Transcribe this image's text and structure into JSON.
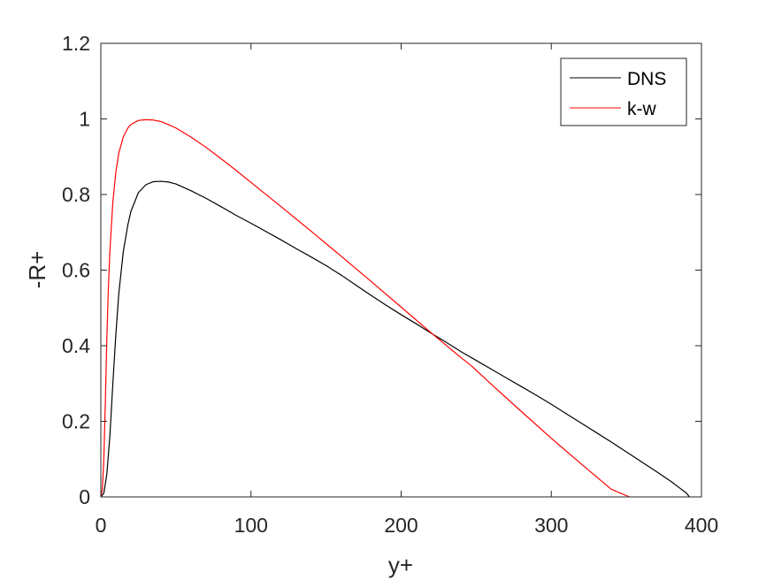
{
  "chart_data": {
    "type": "line",
    "title": "",
    "xlabel": "y+",
    "ylabel": "-R+",
    "xlim": [
      0,
      400
    ],
    "ylim": [
      0,
      1.2
    ],
    "xticks": [
      0,
      100,
      200,
      300,
      400
    ],
    "yticks": [
      0,
      0.2,
      0.4,
      0.6,
      0.8,
      1,
      1.2
    ],
    "xtick_labels": [
      "0",
      "100",
      "200",
      "300",
      "400"
    ],
    "ytick_labels": [
      "0",
      "0.2",
      "0.4",
      "0.6",
      "0.8",
      "1",
      "1.2"
    ],
    "grid": false,
    "legend_position": "top-right",
    "series": [
      {
        "name": "DNS",
        "color": "#000000",
        "x": [
          0,
          2,
          4,
          6,
          8,
          10,
          12,
          15,
          18,
          20,
          25,
          30,
          35,
          40,
          45,
          50,
          60,
          70,
          80,
          90,
          100,
          110,
          120,
          130,
          140,
          150,
          160,
          170,
          180,
          190,
          200,
          210,
          220,
          230,
          240,
          250,
          260,
          270,
          280,
          290,
          300,
          310,
          320,
          330,
          340,
          350,
          360,
          370,
          380,
          385,
          390,
          392
        ],
        "values": [
          0,
          0.01,
          0.06,
          0.16,
          0.3,
          0.43,
          0.54,
          0.65,
          0.72,
          0.755,
          0.805,
          0.826,
          0.834,
          0.835,
          0.833,
          0.828,
          0.81,
          0.79,
          0.768,
          0.745,
          0.724,
          0.702,
          0.68,
          0.657,
          0.635,
          0.612,
          0.587,
          0.56,
          0.533,
          0.507,
          0.482,
          0.458,
          0.433,
          0.409,
          0.384,
          0.361,
          0.338,
          0.315,
          0.292,
          0.269,
          0.245,
          0.22,
          0.195,
          0.17,
          0.145,
          0.119,
          0.093,
          0.067,
          0.04,
          0.025,
          0.01,
          0
        ]
      },
      {
        "name": "k-w",
        "color": "#ff0000",
        "x": [
          0,
          1,
          2,
          3,
          4,
          5,
          6,
          8,
          10,
          12,
          15,
          18,
          20,
          25,
          30,
          35,
          40,
          45,
          50,
          60,
          70,
          80,
          90,
          100,
          120,
          140,
          160,
          180,
          200,
          220,
          240,
          247,
          260,
          280,
          300,
          320,
          340,
          352
        ],
        "values": [
          0,
          0.02,
          0.1,
          0.25,
          0.42,
          0.55,
          0.65,
          0.78,
          0.86,
          0.91,
          0.953,
          0.976,
          0.985,
          0.996,
          0.998,
          0.997,
          0.993,
          0.985,
          0.976,
          0.952,
          0.925,
          0.895,
          0.864,
          0.832,
          0.768,
          0.703,
          0.637,
          0.57,
          0.502,
          0.434,
          0.368,
          0.346,
          0.298,
          0.226,
          0.155,
          0.087,
          0.02,
          0
        ]
      }
    ]
  }
}
